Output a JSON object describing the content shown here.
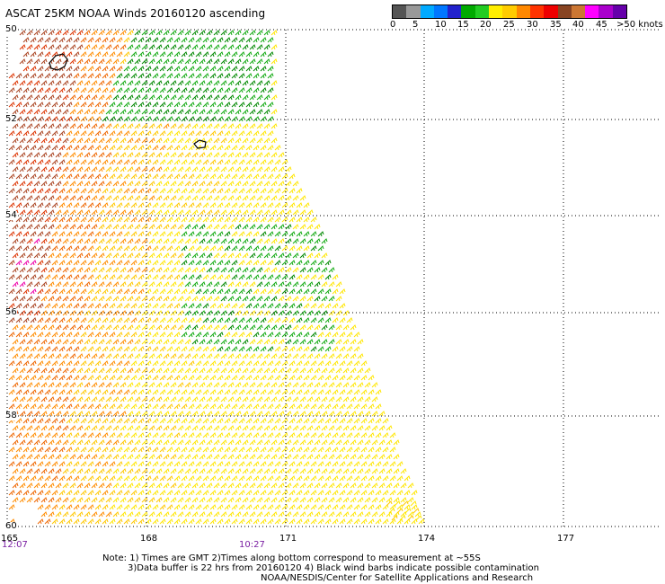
{
  "title": "ASCAT 25KM NOAA Winds 20160120 ascending",
  "colorbar": {
    "colors": [
      "#555555",
      "#999999",
      "#00aaff",
      "#0077ff",
      "#2222cc",
      "#00aa00",
      "#22cc22",
      "#ffee00",
      "#ffcc00",
      "#ff8800",
      "#ff3300",
      "#ee0000",
      "#884422",
      "#cc7733",
      "#ff00ff",
      "#aa00cc",
      "#6600aa"
    ],
    "tick_labels": [
      "0",
      "5",
      "10",
      "15",
      "20",
      "25",
      "30",
      "35",
      "40",
      "45",
      ">50 knots"
    ]
  },
  "axes": {
    "lat_labels": [
      "50",
      "52",
      "54",
      "56",
      "58",
      "60"
    ],
    "lon_labels": [
      "165",
      "168",
      "171",
      "174",
      "177"
    ],
    "grid": "dotted"
  },
  "time_labels": [
    "12:07",
    "10:27"
  ],
  "notes": [
    "Note: 1) Times are GMT 2)Times along bottom correspond to measurement at ~55S",
    "3)Data buffer is 22 hrs from 20160120 4) Black wind barbs indicate possible contamination",
    "NOAA/NESDIS/Center for Satellite Applications and Research"
  ]
}
